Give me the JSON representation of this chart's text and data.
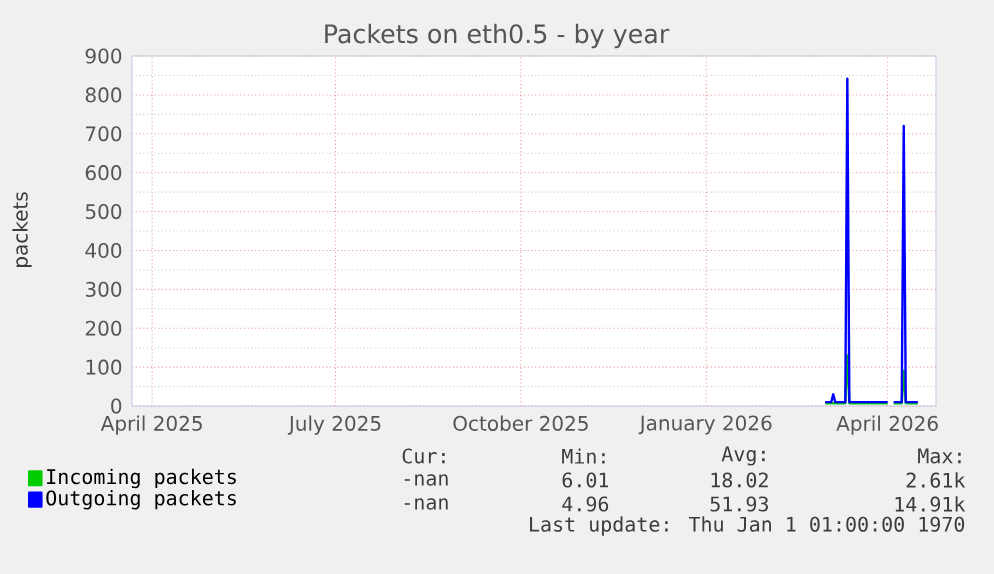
{
  "chart_data": {
    "type": "line",
    "title": "Packets on eth0.5 - by year",
    "ylabel": "packets",
    "xlim": [
      "2025-03-22",
      "2026-04-25"
    ],
    "xticks": [
      {
        "value": "2025-04-01",
        "label": "April 2025"
      },
      {
        "value": "2025-07-01",
        "label": "July 2025"
      },
      {
        "value": "2025-10-01",
        "label": "October 2025"
      },
      {
        "value": "2026-01-01",
        "label": "January 2026"
      },
      {
        "value": "2026-04-01",
        "label": "April 2026"
      }
    ],
    "ylim": [
      0,
      900
    ],
    "yticks": [
      0,
      100,
      200,
      300,
      400,
      500,
      600,
      700,
      800,
      900
    ],
    "x": [
      "2026-03-01",
      "2026-03-04",
      "2026-03-05",
      "2026-03-06",
      "2026-03-11",
      "2026-03-12",
      "2026-03-13",
      "2026-04-01",
      "2026-04-02",
      "2026-04-04",
      "2026-04-08",
      "2026-04-09",
      "2026-04-10",
      "2026-04-16"
    ],
    "series": [
      {
        "name": "Incoming packets",
        "color": "#00cc00",
        "values": [
          7,
          7,
          7,
          7,
          7,
          130,
          7,
          7,
          null,
          7,
          7,
          90,
          7,
          7
        ]
      },
      {
        "name": "Outgoing packets",
        "color": "#0000ff",
        "values": [
          10,
          10,
          30,
          10,
          10,
          842,
          10,
          10,
          null,
          10,
          10,
          720,
          10,
          10
        ]
      }
    ],
    "grid": true,
    "legend": "bottom left",
    "annotations": [
      "Cur:",
      "Min:",
      "Avg:",
      "Max:",
      "-nan",
      "6.01",
      "18.02",
      "2.61k",
      "-nan",
      "4.96",
      "51.93",
      "14.91k",
      "Last update: Thu Jan  1 01:00:00 1970"
    ]
  }
}
